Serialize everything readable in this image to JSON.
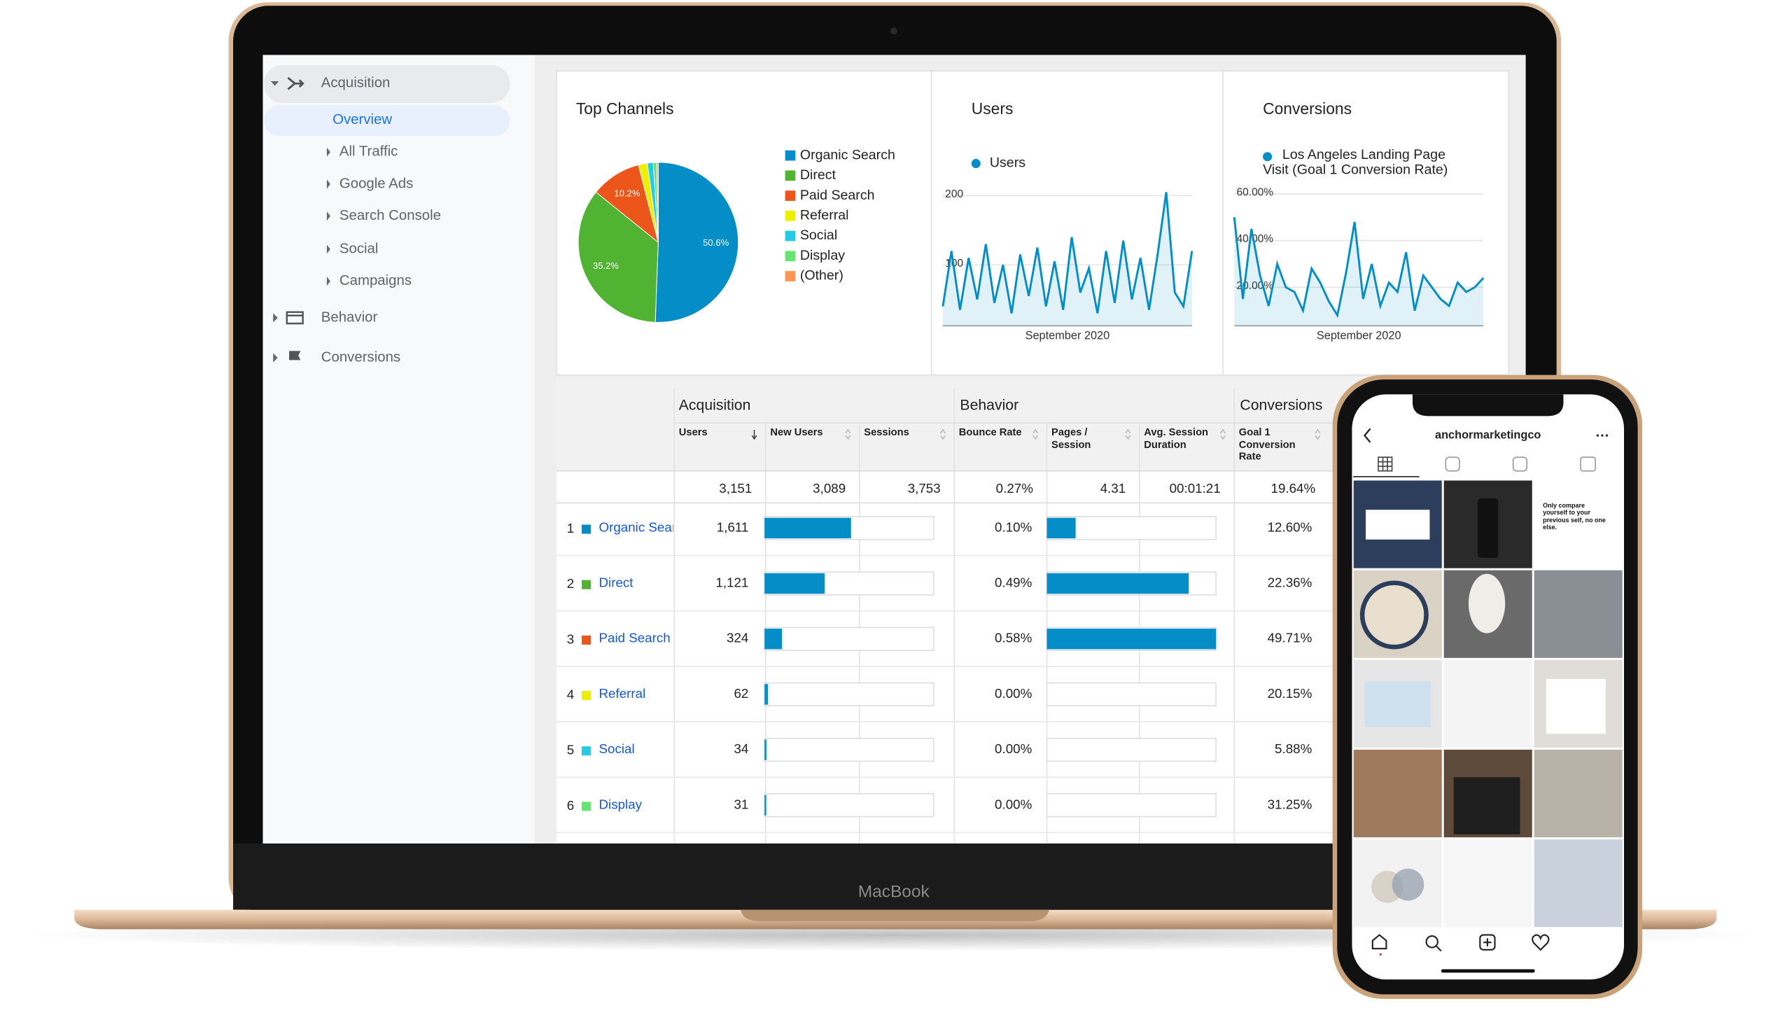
{
  "sidebar": [
    "Acquisition",
    "Overview",
    "All Traffic",
    "Google Ads",
    "Search Console",
    "Social",
    "Campaigns",
    "Behavior",
    "Conversions"
  ],
  "chart_data": [
    {
      "type": "pie",
      "title": "Top Channels",
      "categories": [
        "Organic Search",
        "Direct",
        "Paid Search",
        "Referral",
        "Social",
        "Display",
        "(Other)"
      ],
      "values": [
        50.6,
        35.2,
        10.2,
        1.8,
        1.2,
        0.7,
        0.3
      ],
      "value_labels": [
        "50.6%",
        "35.2%",
        "10.2%",
        null,
        null,
        null,
        null
      ],
      "colors": [
        "#058dc7",
        "#50b432",
        "#ed561b",
        "#edef00",
        "#24cbe5",
        "#64e572",
        "#ff9655"
      ]
    },
    {
      "type": "line",
      "title": "Users",
      "xlabel": "September 2020",
      "series": [
        {
          "name": "Users",
          "color": "#058dc7",
          "values": [
            40,
            120,
            35,
            110,
            50,
            130,
            45,
            100,
            30,
            115,
            55,
            125,
            40,
            105,
            35,
            140,
            60,
            95,
            30,
            120,
            45,
            135,
            50,
            110,
            35,
            115,
            205,
            60,
            40,
            120
          ]
        }
      ],
      "ylim": [
        12,
        215
      ],
      "yticks": [
        100,
        200
      ],
      "grid": true
    },
    {
      "type": "line",
      "title": "Conversions",
      "xlabel": "September 2020",
      "series": [
        {
          "name": "Los Angeles Landing Page Visit (Goal 1 Conversion Rate)",
          "color": "#058dc7",
          "values": [
            50,
            15,
            45,
            25,
            12,
            30,
            20,
            18,
            10,
            28,
            22,
            14,
            8,
            26,
            48,
            15,
            30,
            12,
            22,
            18,
            35,
            10,
            25,
            20,
            15,
            12,
            22,
            18,
            20,
            24
          ]
        }
      ],
      "ylim": [
        3.5,
        63.7
      ],
      "yticks": [
        {
          "value": 20,
          "label": "20.00%"
        },
        {
          "value": 40,
          "label": "40.00%"
        },
        {
          "value": 60,
          "label": "60.00%"
        }
      ],
      "grid": true
    }
  ],
  "table": {
    "groups": [
      "Acquisition",
      "Behavior",
      "Conversions"
    ],
    "columns": [
      "Users",
      "New Users",
      "Sessions",
      "Bounce Rate",
      "Pages / Session",
      "Avg. Session Duration",
      "Goal 1 Conversion Rate"
    ],
    "users_total": {
      "value": 3151,
      "label": "3,151"
    },
    "totals": [
      "3,089",
      "3,753",
      "0.27%",
      "4.31",
      "00:01:21",
      "19.64%"
    ],
    "rows": [
      {
        "rank": "1",
        "name": "Organic Search",
        "color": "#058dc7",
        "users": {
          "value": 1611,
          "label": "1,611"
        },
        "bounce_rate": "0.10%",
        "pages_per_session": 1.5,
        "conversion_rate": "12.60%"
      },
      {
        "rank": "2",
        "name": "Direct",
        "color": "#50b432",
        "users": {
          "value": 1121,
          "label": "1,121"
        },
        "bounce_rate": "0.49%",
        "pages_per_session": 7.4,
        "conversion_rate": "22.36%"
      },
      {
        "rank": "3",
        "name": "Paid Search",
        "color": "#ed561b",
        "users": 324,
        "bounce_rate": "0.58%",
        "pages_per_session": 8.82,
        "conversion_rate": "49.71%"
      },
      {
        "rank": "4",
        "name": "Referral",
        "color": "#edef00",
        "users": 62,
        "bounce_rate": "0.00%",
        "pages_per_session": 0,
        "conversion_rate": "20.15%"
      },
      {
        "rank": "5",
        "name": "Social",
        "color": "#24cbe5",
        "users": 34,
        "bounce_rate": "0.00%",
        "pages_per_session": 0,
        "conversion_rate": "5.88%"
      },
      {
        "rank": "6",
        "name": "Display",
        "color": "#64e572",
        "users": 31,
        "bounce_rate": "0.00%",
        "pages_per_session": 0,
        "conversion_rate": "31.25%"
      }
    ]
  },
  "laptop_label": "MacBook",
  "phone": {
    "username": "anchormarketingco",
    "quote": "Only compare yourself to your previous self, no one else."
  }
}
